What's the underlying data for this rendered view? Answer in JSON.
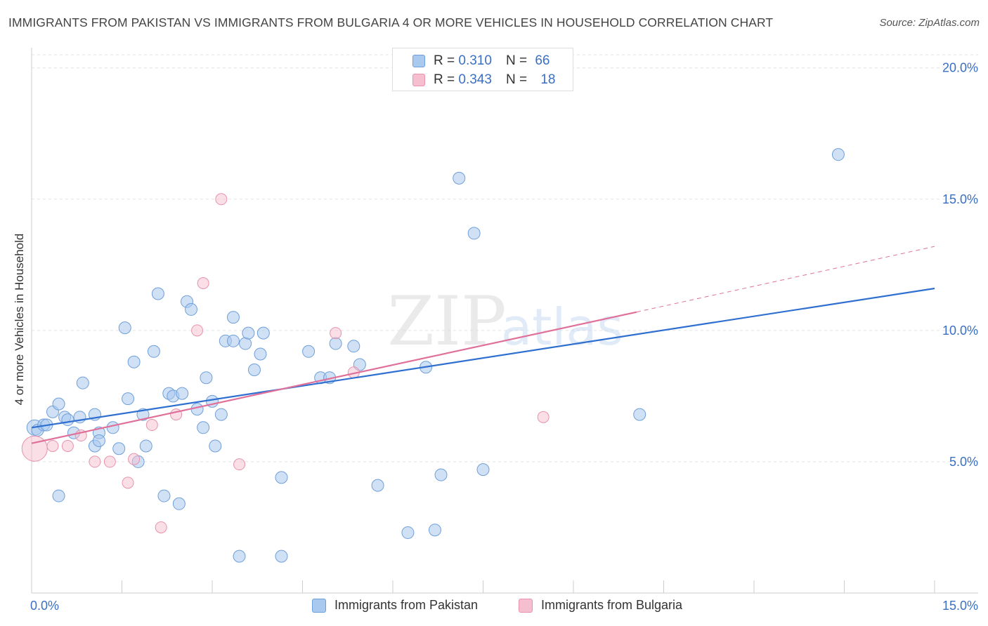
{
  "header": {
    "title": "IMMIGRANTS FROM PAKISTAN VS IMMIGRANTS FROM BULGARIA 4 OR MORE VEHICLES IN HOUSEHOLD CORRELATION CHART",
    "source": "Source: ZipAtlas.com"
  },
  "watermark": {
    "zip": "ZIP",
    "atlas": "atlas"
  },
  "legend": {
    "r_label": "R =",
    "n_label": "N =",
    "pakistan": {
      "r": "0.310",
      "n": "66"
    },
    "bulgaria": {
      "r": "0.343",
      "n": "18"
    }
  },
  "colors": {
    "pakistan_fill": "#a9c9ef",
    "pakistan_stroke": "#6f9fd8",
    "pakistan_line": "#2f6fd0",
    "bulgaria_fill": "#f6bfd0",
    "bulgaria_stroke": "#e693ad",
    "bulgaria_line": "#e07099",
    "axis_label": "#3a6fc4"
  },
  "chart_data": {
    "type": "scatter",
    "title": "IMMIGRANTS FROM PAKISTAN VS IMMIGRANTS FROM BULGARIA 4 OR MORE VEHICLES IN HOUSEHOLD CORRELATION CHART",
    "xlabel": "",
    "ylabel": "4 or more Vehicles in Household",
    "xlim": [
      0,
      15
    ],
    "ylim": [
      0,
      20.5
    ],
    "x_tick_labels": [
      "0.0%",
      "15.0%"
    ],
    "y_ticks": [
      5,
      10,
      15,
      20
    ],
    "y_tick_labels": [
      "5.0%",
      "10.0%",
      "15.0%",
      "20.0%"
    ],
    "grid": true,
    "legend_position": "top-center",
    "series": [
      {
        "name": "Immigrants from Pakistan",
        "r": 0.31,
        "n": 66,
        "trend": {
          "x": [
            0,
            15
          ],
          "y": [
            6.3,
            11.6
          ]
        },
        "points": [
          {
            "x": 0.05,
            "y": 6.3
          },
          {
            "x": 0.1,
            "y": 6.2
          },
          {
            "x": 0.2,
            "y": 6.4
          },
          {
            "x": 0.25,
            "y": 6.4
          },
          {
            "x": 0.35,
            "y": 6.9
          },
          {
            "x": 0.45,
            "y": 7.2
          },
          {
            "x": 0.45,
            "y": 3.7
          },
          {
            "x": 0.55,
            "y": 6.7
          },
          {
            "x": 0.6,
            "y": 6.6
          },
          {
            "x": 0.8,
            "y": 6.7
          },
          {
            "x": 0.7,
            "y": 6.1
          },
          {
            "x": 0.85,
            "y": 8.0
          },
          {
            "x": 1.05,
            "y": 6.8
          },
          {
            "x": 1.05,
            "y": 5.6
          },
          {
            "x": 1.12,
            "y": 6.1
          },
          {
            "x": 1.12,
            "y": 5.8
          },
          {
            "x": 1.35,
            "y": 6.3
          },
          {
            "x": 1.45,
            "y": 5.5
          },
          {
            "x": 1.55,
            "y": 10.1
          },
          {
            "x": 1.6,
            "y": 7.4
          },
          {
            "x": 1.7,
            "y": 8.8
          },
          {
            "x": 1.77,
            "y": 5.0
          },
          {
            "x": 1.85,
            "y": 6.8
          },
          {
            "x": 1.9,
            "y": 5.6
          },
          {
            "x": 2.03,
            "y": 9.2
          },
          {
            "x": 2.1,
            "y": 11.4
          },
          {
            "x": 2.2,
            "y": 3.7
          },
          {
            "x": 2.28,
            "y": 7.6
          },
          {
            "x": 2.35,
            "y": 7.5
          },
          {
            "x": 2.45,
            "y": 3.4
          },
          {
            "x": 2.5,
            "y": 7.6
          },
          {
            "x": 2.58,
            "y": 11.1
          },
          {
            "x": 2.65,
            "y": 10.8
          },
          {
            "x": 2.75,
            "y": 7.0
          },
          {
            "x": 2.85,
            "y": 6.3
          },
          {
            "x": 2.9,
            "y": 8.2
          },
          {
            "x": 3.0,
            "y": 7.3
          },
          {
            "x": 3.05,
            "y": 5.6
          },
          {
            "x": 3.15,
            "y": 6.8
          },
          {
            "x": 3.22,
            "y": 9.6
          },
          {
            "x": 3.35,
            "y": 9.6
          },
          {
            "x": 3.35,
            "y": 10.5
          },
          {
            "x": 3.45,
            "y": 1.4
          },
          {
            "x": 3.55,
            "y": 9.5
          },
          {
            "x": 3.6,
            "y": 9.9
          },
          {
            "x": 3.7,
            "y": 8.5
          },
          {
            "x": 3.8,
            "y": 9.1
          },
          {
            "x": 3.85,
            "y": 9.9
          },
          {
            "x": 4.15,
            "y": 1.4
          },
          {
            "x": 4.15,
            "y": 4.4
          },
          {
            "x": 4.6,
            "y": 9.2
          },
          {
            "x": 4.8,
            "y": 8.2
          },
          {
            "x": 4.95,
            "y": 8.2
          },
          {
            "x": 5.05,
            "y": 9.5
          },
          {
            "x": 5.35,
            "y": 9.4
          },
          {
            "x": 5.45,
            "y": 8.7
          },
          {
            "x": 5.75,
            "y": 4.1
          },
          {
            "x": 6.25,
            "y": 2.3
          },
          {
            "x": 6.55,
            "y": 8.6
          },
          {
            "x": 6.7,
            "y": 2.4
          },
          {
            "x": 6.8,
            "y": 4.5
          },
          {
            "x": 7.1,
            "y": 15.8
          },
          {
            "x": 7.35,
            "y": 13.7
          },
          {
            "x": 7.5,
            "y": 4.7
          },
          {
            "x": 10.1,
            "y": 6.8
          },
          {
            "x": 13.4,
            "y": 16.7
          }
        ]
      },
      {
        "name": "Immigrants from Bulgaria",
        "r": 0.343,
        "n": 18,
        "trend": {
          "x": [
            0,
            10.05
          ],
          "y": [
            5.7,
            10.7
          ]
        },
        "trend_dashed": {
          "x": [
            10.05,
            15
          ],
          "y": [
            10.7,
            13.2
          ]
        },
        "points": [
          {
            "x": 0.05,
            "y": 5.5
          },
          {
            "x": 0.35,
            "y": 5.6
          },
          {
            "x": 0.6,
            "y": 5.6
          },
          {
            "x": 0.82,
            "y": 6.0
          },
          {
            "x": 1.05,
            "y": 5.0
          },
          {
            "x": 1.3,
            "y": 5.0
          },
          {
            "x": 1.6,
            "y": 4.2
          },
          {
            "x": 1.7,
            "y": 5.1
          },
          {
            "x": 2.0,
            "y": 6.4
          },
          {
            "x": 2.15,
            "y": 2.5
          },
          {
            "x": 2.4,
            "y": 6.8
          },
          {
            "x": 2.75,
            "y": 10.0
          },
          {
            "x": 2.85,
            "y": 11.8
          },
          {
            "x": 3.15,
            "y": 15.0
          },
          {
            "x": 3.45,
            "y": 4.9
          },
          {
            "x": 5.05,
            "y": 9.9
          },
          {
            "x": 5.35,
            "y": 8.4
          },
          {
            "x": 8.5,
            "y": 6.7
          }
        ]
      }
    ]
  },
  "bottom_legend": {
    "pakistan_label": "Immigrants from Pakistan",
    "bulgaria_label": "Immigrants from Bulgaria"
  }
}
